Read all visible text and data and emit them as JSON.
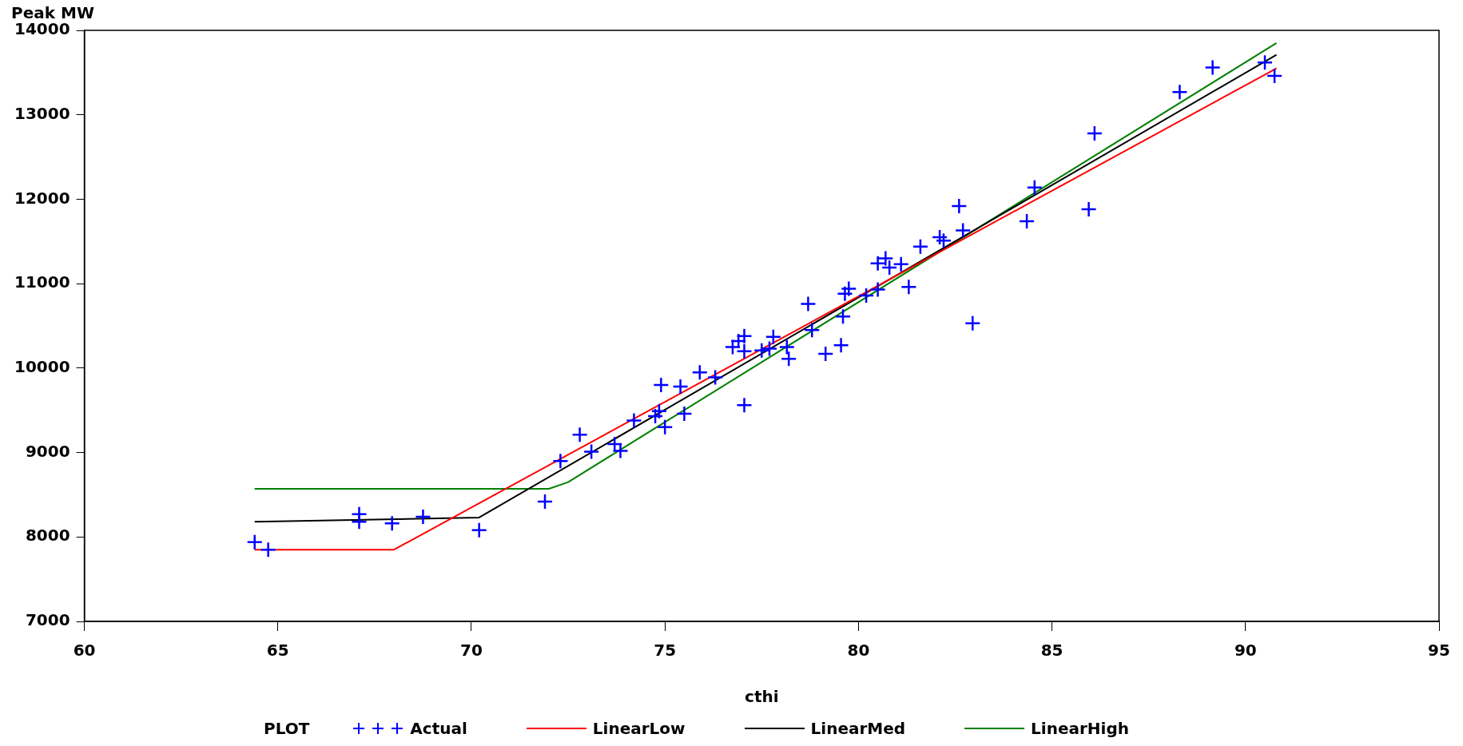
{
  "chart_data": {
    "type": "scatter",
    "xlabel": "cthi",
    "ylabel": "Peak MW",
    "legend_title": "PLOT",
    "legend": "bottom",
    "grid": false,
    "xlim": [
      60,
      95
    ],
    "xticks": [
      60,
      65,
      70,
      75,
      80,
      85,
      90,
      95
    ],
    "ylim": [
      7000,
      14000
    ],
    "yticks": [
      7000,
      8000,
      9000,
      10000,
      11000,
      12000,
      13000,
      14000
    ],
    "series": [
      {
        "name": "Actual",
        "marker": "cross",
        "color": "#0000ff",
        "x": [
          64.4,
          64.75,
          67.1,
          67.1,
          67.95,
          68.75,
          70.2,
          71.9,
          72.3,
          72.8,
          73.1,
          73.7,
          73.85,
          74.2,
          74.75,
          74.85,
          74.9,
          75.0,
          75.4,
          75.5,
          75.9,
          76.3,
          76.75,
          76.9,
          77.05,
          77.05,
          77.05,
          77.5,
          77.7,
          77.8,
          78.2,
          78.15,
          78.7,
          78.8,
          79.15,
          79.55,
          79.6,
          79.65,
          79.75,
          80.2,
          80.5,
          80.5,
          80.7,
          80.8,
          81.1,
          81.3,
          81.6,
          82.1,
          82.2,
          82.6,
          82.7,
          82.95,
          84.35,
          84.55,
          85.95,
          86.1,
          88.3,
          89.15,
          90.5,
          90.75
        ],
        "values": [
          7940,
          7850,
          8270,
          8180,
          8160,
          8240,
          8080,
          8420,
          8900,
          9210,
          9010,
          9100,
          9020,
          9380,
          9430,
          9490,
          9800,
          9300,
          9780,
          9460,
          9950,
          9890,
          10250,
          10320,
          10380,
          10200,
          9560,
          10210,
          10230,
          10370,
          10110,
          10250,
          10760,
          10450,
          10170,
          10270,
          10610,
          10880,
          10940,
          10860,
          10930,
          11240,
          11300,
          11190,
          11230,
          10960,
          11440,
          11550,
          11510,
          11920,
          11630,
          10530,
          11740,
          12140,
          11880,
          12780,
          13270,
          13560,
          13620,
          13460
        ]
      },
      {
        "name": "LinearLow",
        "type": "line",
        "marker": "none",
        "color": "#ff0000",
        "x": [
          64.4,
          68.0,
          90.8
        ],
        "values": [
          7850,
          7850,
          13550
        ]
      },
      {
        "name": "LinearMed",
        "type": "line",
        "marker": "none",
        "color": "#000000",
        "x": [
          64.4,
          70.2,
          90.8
        ],
        "values": [
          8180,
          8230,
          13710
        ]
      },
      {
        "name": "LinearHigh",
        "type": "line",
        "marker": "none",
        "color": "#008000",
        "x": [
          64.4,
          72.0,
          72.5,
          90.8
        ],
        "values": [
          8570,
          8570,
          8650,
          13850
        ]
      }
    ]
  }
}
